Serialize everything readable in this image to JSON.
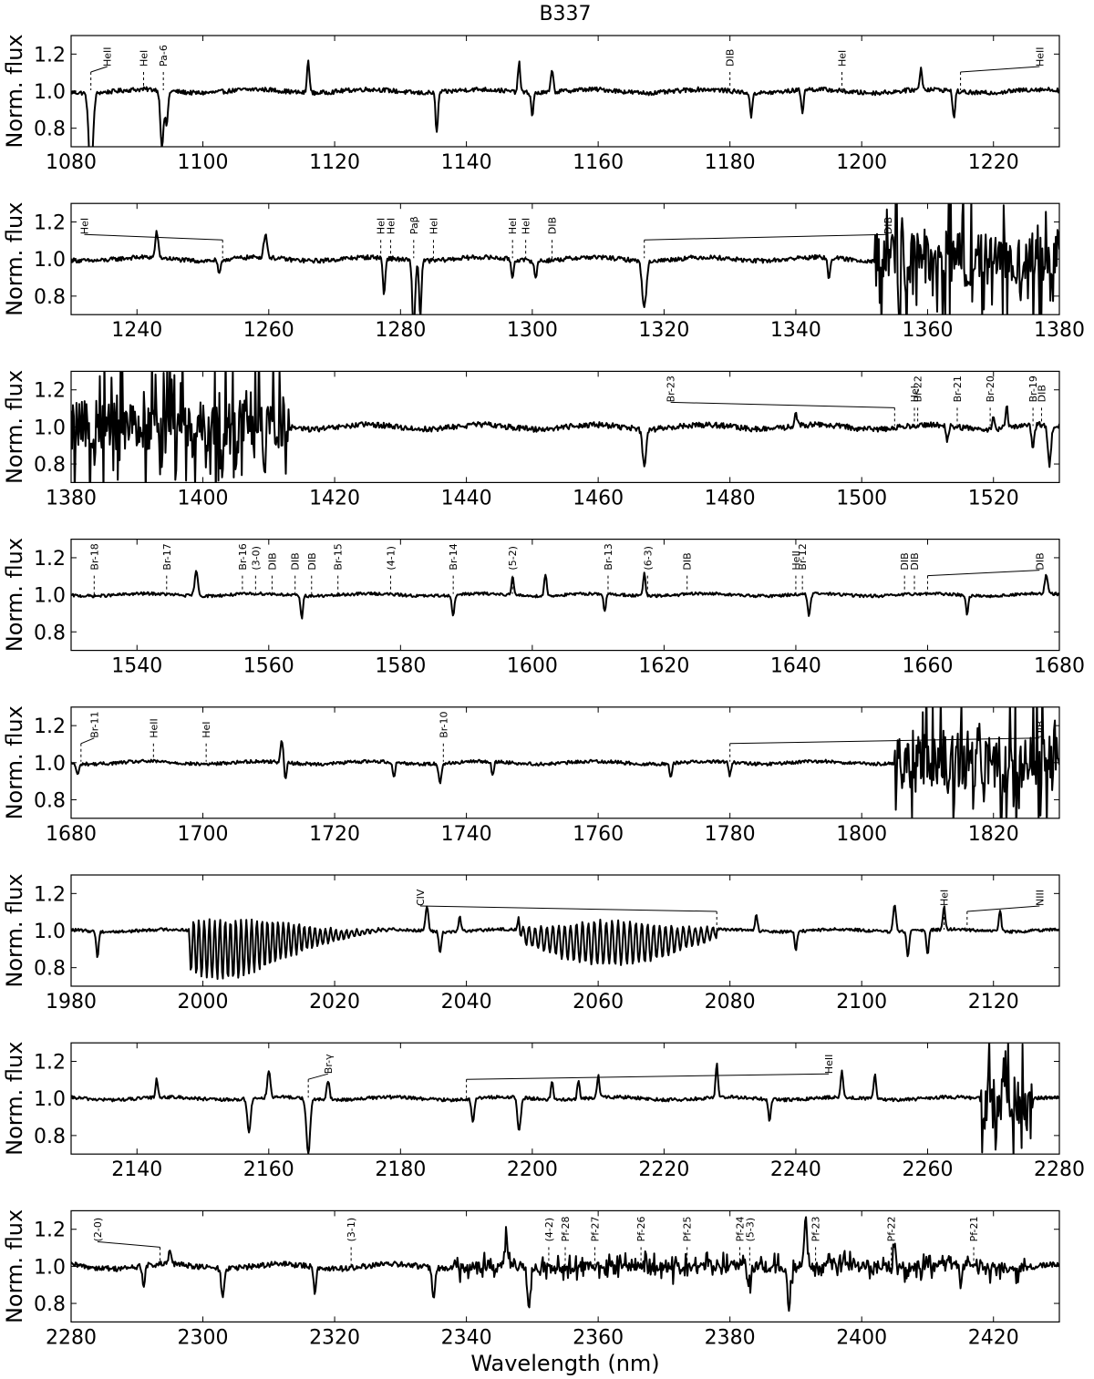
{
  "chart_data": [
    {
      "type": "line",
      "title": "B337",
      "xlabel": "",
      "ylabel": "Norm. flux",
      "xlim": [
        1080,
        1230
      ],
      "ylim": [
        0.7,
        1.3
      ],
      "xticks": [
        1080,
        1100,
        1120,
        1140,
        1160,
        1180,
        1200,
        1220
      ],
      "yticks": [
        0.8,
        1.0,
        1.2
      ],
      "ytick_labels": [
        "0.8",
        "1.0",
        "1.2"
      ],
      "noise": 0.012,
      "features": [
        {
          "x": 1083.0,
          "depth": 0.45,
          "width": 0.45
        },
        {
          "x": 1093.8,
          "depth": 0.3,
          "width": 0.35
        },
        {
          "x": 1094.5,
          "depth": 0.18,
          "width": 0.3
        },
        {
          "x": 1116.0,
          "depth": -0.18,
          "width": 0.25
        },
        {
          "x": 1135.5,
          "depth": 0.22,
          "width": 0.25
        },
        {
          "x": 1148.0,
          "depth": -0.16,
          "width": 0.25
        },
        {
          "x": 1150.0,
          "depth": 0.12,
          "width": 0.25
        },
        {
          "x": 1153.0,
          "depth": -0.13,
          "width": 0.25
        },
        {
          "x": 1183.2,
          "depth": 0.13,
          "width": 0.25
        },
        {
          "x": 1191.0,
          "depth": 0.12,
          "width": 0.25
        },
        {
          "x": 1209.0,
          "depth": -0.12,
          "width": 0.25
        },
        {
          "x": 1214.0,
          "depth": 0.15,
          "width": 0.25
        }
      ],
      "annotations": [
        {
          "label": "HeII",
          "x": 1083.0,
          "xa": 1085.5
        },
        {
          "label": "HeI",
          "x": 1091.0
        },
        {
          "label": "Pa-6",
          "x": 1094.0
        },
        {
          "label": "DIB",
          "x": 1180.0
        },
        {
          "label": "HeI",
          "x": 1197.0
        },
        {
          "label": "HeII",
          "x": 1215.0,
          "xa": 1227.0
        }
      ]
    },
    {
      "type": "line",
      "title": "",
      "xlabel": "",
      "ylabel": "Norm. flux",
      "xlim": [
        1230,
        1380
      ],
      "ylim": [
        0.7,
        1.3
      ],
      "xticks": [
        1240,
        1260,
        1280,
        1300,
        1320,
        1340,
        1360,
        1380
      ],
      "yticks": [
        0.8,
        1.0,
        1.2
      ],
      "ytick_labels": [
        "0.8",
        "1.0",
        "1.2"
      ],
      "noise": 0.012,
      "features": [
        {
          "x": 1243.0,
          "depth": -0.14,
          "width": 0.3
        },
        {
          "x": 1252.5,
          "depth": 0.08,
          "width": 0.3
        },
        {
          "x": 1259.5,
          "depth": -0.13,
          "width": 0.35
        },
        {
          "x": 1277.5,
          "depth": 0.2,
          "width": 0.25
        },
        {
          "x": 1282.0,
          "depth": 0.38,
          "width": 0.3
        },
        {
          "x": 1283.0,
          "depth": 0.3,
          "width": 0.25
        },
        {
          "x": 1297.0,
          "depth": 0.1,
          "width": 0.25
        },
        {
          "x": 1300.5,
          "depth": 0.1,
          "width": 0.25
        },
        {
          "x": 1317.0,
          "depth": 0.25,
          "width": 0.45
        },
        {
          "x": 1345.0,
          "depth": 0.12,
          "width": 0.25
        }
      ],
      "noisy_region": {
        "from": 1352,
        "to": 1380,
        "amplitude": 0.35
      },
      "annotations": [
        {
          "label": "HeI",
          "x": 1253.0,
          "xa": 1232.0
        },
        {
          "label": "HeI",
          "x": 1277.0
        },
        {
          "label": "HeI",
          "x": 1278.5
        },
        {
          "label": "Paβ",
          "x": 1282.0
        },
        {
          "label": "HeI",
          "x": 1285.0
        },
        {
          "label": "HeI",
          "x": 1297.0
        },
        {
          "label": "HeI",
          "x": 1299.0
        },
        {
          "label": "DIB",
          "x": 1303.0
        },
        {
          "label": "DIB",
          "x": 1317.0,
          "xa": 1354.0
        }
      ]
    },
    {
      "type": "line",
      "title": "",
      "xlabel": "",
      "ylabel": "Norm. flux",
      "xlim": [
        1380,
        1530
      ],
      "ylim": [
        0.7,
        1.3
      ],
      "xticks": [
        1380,
        1400,
        1420,
        1440,
        1460,
        1480,
        1500,
        1520
      ],
      "yticks": [
        0.8,
        1.0,
        1.2
      ],
      "ytick_labels": [
        "0.8",
        "1.0",
        "1.2"
      ],
      "noise": 0.015,
      "features": [
        {
          "x": 1467.0,
          "depth": 0.2,
          "width": 0.4
        },
        {
          "x": 1490.0,
          "depth": -0.08,
          "width": 0.25
        },
        {
          "x": 1513.0,
          "depth": 0.08,
          "width": 0.25
        },
        {
          "x": 1520.0,
          "depth": -0.06,
          "width": 0.25
        },
        {
          "x": 1522.0,
          "depth": -0.13,
          "width": 0.25
        },
        {
          "x": 1526.0,
          "depth": 0.12,
          "width": 0.3
        },
        {
          "x": 1528.5,
          "depth": 0.22,
          "width": 0.35
        }
      ],
      "noisy_region": {
        "from": 1380,
        "to": 1413,
        "amplitude": 0.35
      },
      "annotations": [
        {
          "label": "Br-23",
          "x": 1505.0,
          "xa": 1471.0
        },
        {
          "label": "HeI",
          "x": 1508.0
        },
        {
          "label": "Br-22",
          "x": 1508.5
        },
        {
          "label": "Br-21",
          "x": 1514.5
        },
        {
          "label": "Br-20",
          "x": 1519.5
        },
        {
          "label": "Br-19",
          "x": 1526.0
        },
        {
          "label": "DIB",
          "x": 1527.3
        }
      ]
    },
    {
      "type": "line",
      "title": "",
      "xlabel": "",
      "ylabel": "Norm. flux",
      "xlim": [
        1530,
        1680
      ],
      "ylim": [
        0.7,
        1.3
      ],
      "xticks": [
        1540,
        1560,
        1580,
        1600,
        1620,
        1640,
        1660,
        1680
      ],
      "yticks": [
        0.8,
        1.0,
        1.2
      ],
      "ytick_labels": [
        "0.8",
        "1.0",
        "1.2"
      ],
      "noise": 0.008,
      "features": [
        {
          "x": 1549.0,
          "depth": -0.13,
          "width": 0.35
        },
        {
          "x": 1565.0,
          "depth": 0.12,
          "width": 0.25
        },
        {
          "x": 1588.0,
          "depth": 0.12,
          "width": 0.25
        },
        {
          "x": 1597.0,
          "depth": -0.1,
          "width": 0.25
        },
        {
          "x": 1602.0,
          "depth": -0.12,
          "width": 0.25
        },
        {
          "x": 1611.0,
          "depth": 0.1,
          "width": 0.25
        },
        {
          "x": 1617.0,
          "depth": -0.12,
          "width": 0.25
        },
        {
          "x": 1642.0,
          "depth": 0.12,
          "width": 0.3
        },
        {
          "x": 1666.0,
          "depth": 0.1,
          "width": 0.25
        },
        {
          "x": 1678.0,
          "depth": -0.1,
          "width": 0.3
        }
      ],
      "annotations": [
        {
          "label": "Br-18",
          "x": 1533.5
        },
        {
          "label": "Br-17",
          "x": 1544.5
        },
        {
          "label": "Br-16",
          "x": 1556.0
        },
        {
          "label": "(3-0)",
          "x": 1558.0
        },
        {
          "label": "DIB",
          "x": 1560.5
        },
        {
          "label": "DIB",
          "x": 1564.0
        },
        {
          "label": "DIB",
          "x": 1566.5
        },
        {
          "label": "Br-15",
          "x": 1570.5
        },
        {
          "label": "(4-1)",
          "x": 1578.5
        },
        {
          "label": "Br-14",
          "x": 1588.0
        },
        {
          "label": "(5-2)",
          "x": 1597.0
        },
        {
          "label": "Br-13",
          "x": 1611.5
        },
        {
          "label": "(6-3)",
          "x": 1617.5
        },
        {
          "label": "DIB",
          "x": 1623.5
        },
        {
          "label": "HeII",
          "x": 1640.0
        },
        {
          "label": "Br-12",
          "x": 1641.0
        },
        {
          "label": "DIB",
          "x": 1656.5
        },
        {
          "label": "DIB",
          "x": 1658.0
        },
        {
          "label": "DIB",
          "x": 1660.0,
          "xa": 1677.0
        }
      ]
    },
    {
      "type": "line",
      "title": "",
      "xlabel": "",
      "ylabel": "Norm. flux",
      "xlim": [
        1680,
        1830
      ],
      "ylim": [
        0.7,
        1.3
      ],
      "xticks": [
        1680,
        1700,
        1720,
        1740,
        1760,
        1780,
        1800,
        1820
      ],
      "yticks": [
        0.8,
        1.0,
        1.2
      ],
      "ytick_labels": [
        "0.8",
        "1.0",
        "1.2"
      ],
      "noise": 0.009,
      "features": [
        {
          "x": 1681.0,
          "depth": 0.06,
          "width": 0.3
        },
        {
          "x": 1712.0,
          "depth": -0.12,
          "width": 0.3
        },
        {
          "x": 1712.5,
          "depth": 0.1,
          "width": 0.25
        },
        {
          "x": 1729.0,
          "depth": 0.08,
          "width": 0.25
        },
        {
          "x": 1736.0,
          "depth": 0.1,
          "width": 0.3
        },
        {
          "x": 1744.0,
          "depth": 0.08,
          "width": 0.25
        },
        {
          "x": 1771.0,
          "depth": 0.08,
          "width": 0.25
        },
        {
          "x": 1780.0,
          "depth": 0.07,
          "width": 0.25
        }
      ],
      "noisy_region": {
        "from": 1805,
        "to": 1830,
        "amplitude": 0.35
      },
      "annotations": [
        {
          "label": "Br-11",
          "x": 1681.5,
          "xa": 1683.5
        },
        {
          "label": "HeII",
          "x": 1692.5
        },
        {
          "label": "HeI",
          "x": 1700.5
        },
        {
          "label": "Br-10",
          "x": 1736.5
        },
        {
          "label": "DIB",
          "x": 1780.0,
          "xa": 1827.0
        }
      ]
    },
    {
      "type": "line",
      "title": "",
      "xlabel": "",
      "ylabel": "Norm. flux",
      "xlim": [
        1980,
        2130
      ],
      "ylim": [
        0.7,
        1.3
      ],
      "xticks": [
        1980,
        2000,
        2020,
        2040,
        2060,
        2080,
        2100,
        2120
      ],
      "yticks": [
        0.8,
        1.0,
        1.2
      ],
      "ytick_labels": [
        "0.8",
        "1.0",
        "1.2"
      ],
      "noise": 0.008,
      "features": [
        {
          "x": 1984.0,
          "depth": 0.14,
          "width": 0.25
        },
        {
          "x": 2034.0,
          "depth": -0.14,
          "width": 0.3
        },
        {
          "x": 2036.0,
          "depth": 0.12,
          "width": 0.25
        },
        {
          "x": 2039.0,
          "depth": -0.08,
          "width": 0.25
        },
        {
          "x": 2048.0,
          "depth": -0.08,
          "width": 0.25
        },
        {
          "x": 2084.0,
          "depth": -0.08,
          "width": 0.25
        },
        {
          "x": 2090.0,
          "depth": 0.1,
          "width": 0.25
        },
        {
          "x": 2105.0,
          "depth": -0.15,
          "width": 0.3
        },
        {
          "x": 2107.0,
          "depth": 0.14,
          "width": 0.25
        },
        {
          "x": 2110.0,
          "depth": 0.13,
          "width": 0.25
        },
        {
          "x": 2112.5,
          "depth": -0.13,
          "width": 0.25
        },
        {
          "x": 2121.0,
          "depth": -0.12,
          "width": 0.25
        }
      ],
      "oscillation_regions": [
        {
          "from": 1998,
          "to": 2028,
          "center": 2003,
          "amplitude": 0.16,
          "period": 0.8
        },
        {
          "from": 2048,
          "to": 2078,
          "center": 2062,
          "amplitude": 0.12,
          "period": 0.9
        }
      ],
      "annotations": [
        {
          "label": "CIV",
          "x": 2078.0,
          "xa": 2033.0
        },
        {
          "label": "HeI",
          "x": 2112.5
        },
        {
          "label": "NIII",
          "x": 2116.0,
          "xa": 2127.0
        }
      ]
    },
    {
      "type": "line",
      "title": "",
      "xlabel": "",
      "ylabel": "Norm. flux",
      "xlim": [
        2130,
        2280
      ],
      "ylim": [
        0.7,
        1.3
      ],
      "xticks": [
        2140,
        2160,
        2180,
        2200,
        2220,
        2240,
        2260,
        2280
      ],
      "yticks": [
        0.8,
        1.0,
        1.2
      ],
      "ytick_labels": [
        "0.8",
        "1.0",
        "1.2"
      ],
      "noise": 0.009,
      "features": [
        {
          "x": 2143.0,
          "depth": -0.1,
          "width": 0.25
        },
        {
          "x": 2157.0,
          "depth": 0.18,
          "width": 0.35
        },
        {
          "x": 2160.0,
          "depth": -0.15,
          "width": 0.3
        },
        {
          "x": 2166.0,
          "depth": 0.3,
          "width": 0.4
        },
        {
          "x": 2169.0,
          "depth": -0.1,
          "width": 0.3
        },
        {
          "x": 2191.0,
          "depth": 0.12,
          "width": 0.3
        },
        {
          "x": 2198.0,
          "depth": 0.18,
          "width": 0.35
        },
        {
          "x": 2203.0,
          "depth": -0.1,
          "width": 0.25
        },
        {
          "x": 2207.0,
          "depth": -0.1,
          "width": 0.25
        },
        {
          "x": 2210.0,
          "depth": -0.12,
          "width": 0.25
        },
        {
          "x": 2228.0,
          "depth": -0.18,
          "width": 0.25
        },
        {
          "x": 2236.0,
          "depth": 0.12,
          "width": 0.25
        },
        {
          "x": 2247.0,
          "depth": -0.14,
          "width": 0.25
        },
        {
          "x": 2252.0,
          "depth": -0.13,
          "width": 0.25
        }
      ],
      "noisy_region": {
        "from": 2268,
        "to": 2276,
        "amplitude": 0.3
      },
      "annotations": [
        {
          "label": "Br-γ",
          "x": 2166.0,
          "xa": 2169.0
        },
        {
          "label": "HeII",
          "x": 2190.0,
          "xa": 2245.0
        }
      ]
    },
    {
      "type": "line",
      "title": "",
      "xlabel": "Wavelength (nm)",
      "ylabel": "Norm. flux",
      "xlim": [
        2280,
        2430
      ],
      "ylim": [
        0.7,
        1.3
      ],
      "xticks": [
        2280,
        2300,
        2320,
        2340,
        2360,
        2380,
        2400,
        2420
      ],
      "yticks": [
        0.8,
        1.0,
        1.2
      ],
      "ytick_labels": [
        "0.8",
        "1.0",
        "1.2"
      ],
      "noise": 0.015,
      "features": [
        {
          "x": 2291.0,
          "depth": 0.12,
          "width": 0.25
        },
        {
          "x": 2295.0,
          "depth": -0.08,
          "width": 0.25
        },
        {
          "x": 2303.0,
          "depth": 0.16,
          "width": 0.3
        },
        {
          "x": 2317.0,
          "depth": 0.14,
          "width": 0.25
        },
        {
          "x": 2335.0,
          "depth": 0.17,
          "width": 0.3
        },
        {
          "x": 2346.0,
          "depth": -0.18,
          "width": 0.25
        },
        {
          "x": 2349.5,
          "depth": 0.22,
          "width": 0.35
        },
        {
          "x": 2383.0,
          "depth": 0.12,
          "width": 0.3
        },
        {
          "x": 2389.0,
          "depth": 0.18,
          "width": 0.35
        },
        {
          "x": 2391.5,
          "depth": -0.3,
          "width": 0.25
        },
        {
          "x": 2405.0,
          "depth": -0.15,
          "width": 0.25
        },
        {
          "x": 2415.0,
          "depth": 0.12,
          "width": 0.25
        }
      ],
      "noisy_region": {
        "from": 2338,
        "to": 2425,
        "amplitude": 0.06
      },
      "annotations": [
        {
          "label": "(2-0)",
          "x": 2293.5,
          "xa": 2284.0
        },
        {
          "label": "(3-1)",
          "x": 2322.5
        },
        {
          "label": "(4-2)",
          "x": 2352.5
        },
        {
          "label": "Pf-28",
          "x": 2355.0
        },
        {
          "label": "Pf-27",
          "x": 2359.5
        },
        {
          "label": "Pf-26",
          "x": 2366.5
        },
        {
          "label": "Pf-25",
          "x": 2373.5
        },
        {
          "label": "Pf-24",
          "x": 2381.5
        },
        {
          "label": "(5-3)",
          "x": 2383.0
        },
        {
          "label": "Pf-23",
          "x": 2393.0
        },
        {
          "label": "Pf-22",
          "x": 2404.5
        },
        {
          "label": "Pf-21",
          "x": 2417.0
        }
      ]
    }
  ]
}
